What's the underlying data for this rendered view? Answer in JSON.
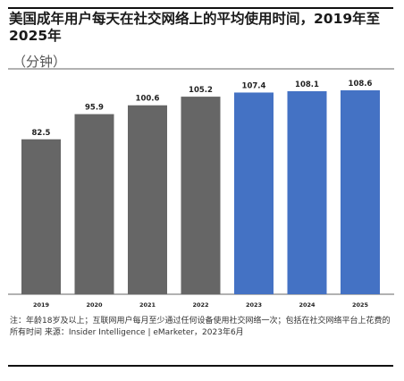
{
  "title": "美国成年用户每天在社交网络上的平均使用时间，2019年至2025年",
  "unit": "（分钟）",
  "note": "注：年龄18岁及以上；互联网用户每月至少通过任何设备使用社交网络一次；包括在社交网络平台上花费的所有时间 来源：Insider Intelligence | eMarketer，2023年6月",
  "colors": {
    "actual": "#666666",
    "forecast": "#4472c4"
  },
  "chart_data": {
    "type": "bar",
    "title": "美国成年用户每天在社交网络上的平均使用时间，2019年至2025年",
    "ylabel": "（分钟）",
    "xlabel": "",
    "categories": [
      "2019",
      "2020",
      "2021",
      "2022",
      "2023",
      "2024",
      "2025"
    ],
    "values": [
      82.5,
      95.9,
      100.6,
      105.2,
      107.4,
      108.1,
      108.6
    ],
    "value_labels": [
      "82.5",
      "95.9",
      "100.6",
      "105.2",
      "107.4",
      "108.1",
      "108.6"
    ],
    "bar_colors": [
      "#666666",
      "#666666",
      "#666666",
      "#666666",
      "#4472c4",
      "#4472c4",
      "#4472c4"
    ],
    "ylim": [
      0,
      110
    ],
    "grid": false,
    "legend": "none"
  }
}
